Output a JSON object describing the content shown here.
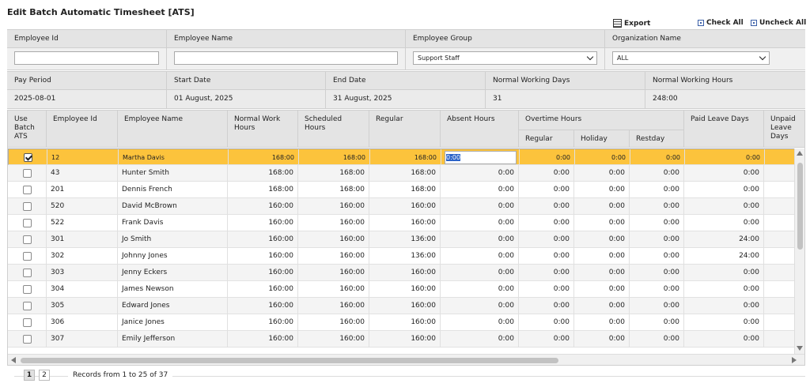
{
  "title": "Edit Batch Automatic Timesheet [ATS]",
  "toolbar": {
    "export": "Export",
    "check_all": "Check All",
    "uncheck_all": "Uncheck All"
  },
  "filters": {
    "labels": [
      "Employee Id",
      "Employee Name",
      "Employee Group",
      "Organization Name"
    ],
    "employee_id": "",
    "employee_name": "",
    "employee_group": "Support Staff",
    "organization": "ALL"
  },
  "info": {
    "labels": [
      "Pay Period",
      "Start Date",
      "End Date",
      "Normal Working Days",
      "Normal Working Hours"
    ],
    "values": [
      "2025-08-01",
      "01 August, 2025",
      "31 August, 2025",
      "31",
      "248:00"
    ]
  },
  "columns": {
    "use_batch": "Use Batch ATS",
    "emp_id": "Employee Id",
    "emp_name": "Employee Name",
    "normal_hours": "Normal Work Hours",
    "scheduled": "Scheduled Hours",
    "regular": "Regular",
    "absent": "Absent Hours",
    "overtime": "Overtime Hours",
    "ot_regular": "Regular",
    "ot_holiday": "Holiday",
    "ot_restday": "Restday",
    "paid_leave": "Paid Leave Days",
    "unpaid_leave": "Unpaid Leave Days"
  },
  "rows": [
    {
      "checked": true,
      "id": "12",
      "name": "Martha Davis",
      "normal": "168:00",
      "scheduled": "168:00",
      "regular": "168:00",
      "absent": "0:00",
      "ot_reg": "0:00",
      "ot_hol": "0:00",
      "ot_rest": "0:00",
      "paid": "0:00"
    },
    {
      "checked": false,
      "id": "43",
      "name": "Hunter Smith",
      "normal": "168:00",
      "scheduled": "168:00",
      "regular": "168:00",
      "absent": "0:00",
      "ot_reg": "0:00",
      "ot_hol": "0:00",
      "ot_rest": "0:00",
      "paid": "0:00"
    },
    {
      "checked": false,
      "id": "201",
      "name": "Dennis French",
      "normal": "168:00",
      "scheduled": "168:00",
      "regular": "168:00",
      "absent": "0:00",
      "ot_reg": "0:00",
      "ot_hol": "0:00",
      "ot_rest": "0:00",
      "paid": "0:00"
    },
    {
      "checked": false,
      "id": "520",
      "name": "David McBrown",
      "normal": "160:00",
      "scheduled": "160:00",
      "regular": "160:00",
      "absent": "0:00",
      "ot_reg": "0:00",
      "ot_hol": "0:00",
      "ot_rest": "0:00",
      "paid": "0:00"
    },
    {
      "checked": false,
      "id": "522",
      "name": "Frank Davis",
      "normal": "160:00",
      "scheduled": "160:00",
      "regular": "160:00",
      "absent": "0:00",
      "ot_reg": "0:00",
      "ot_hol": "0:00",
      "ot_rest": "0:00",
      "paid": "0:00"
    },
    {
      "checked": false,
      "id": "301",
      "name": "Jo Smith",
      "normal": "160:00",
      "scheduled": "160:00",
      "regular": "136:00",
      "absent": "0:00",
      "ot_reg": "0:00",
      "ot_hol": "0:00",
      "ot_rest": "0:00",
      "paid": "24:00"
    },
    {
      "checked": false,
      "id": "302",
      "name": "Johnny Jones",
      "normal": "160:00",
      "scheduled": "160:00",
      "regular": "136:00",
      "absent": "0:00",
      "ot_reg": "0:00",
      "ot_hol": "0:00",
      "ot_rest": "0:00",
      "paid": "24:00"
    },
    {
      "checked": false,
      "id": "303",
      "name": "Jenny Eckers",
      "normal": "160:00",
      "scheduled": "160:00",
      "regular": "160:00",
      "absent": "0:00",
      "ot_reg": "0:00",
      "ot_hol": "0:00",
      "ot_rest": "0:00",
      "paid": "0:00"
    },
    {
      "checked": false,
      "id": "304",
      "name": "James Newson",
      "normal": "160:00",
      "scheduled": "160:00",
      "regular": "160:00",
      "absent": "0:00",
      "ot_reg": "0:00",
      "ot_hol": "0:00",
      "ot_rest": "0:00",
      "paid": "0:00"
    },
    {
      "checked": false,
      "id": "305",
      "name": "Edward Jones",
      "normal": "160:00",
      "scheduled": "160:00",
      "regular": "160:00",
      "absent": "0:00",
      "ot_reg": "0:00",
      "ot_hol": "0:00",
      "ot_rest": "0:00",
      "paid": "0:00"
    },
    {
      "checked": false,
      "id": "306",
      "name": "Janice Jones",
      "normal": "160:00",
      "scheduled": "160:00",
      "regular": "160:00",
      "absent": "0:00",
      "ot_reg": "0:00",
      "ot_hol": "0:00",
      "ot_rest": "0:00",
      "paid": "0:00"
    },
    {
      "checked": false,
      "id": "307",
      "name": "Emily Jefferson",
      "normal": "160:00",
      "scheduled": "160:00",
      "regular": "160:00",
      "absent": "0:00",
      "ot_reg": "0:00",
      "ot_hol": "0:00",
      "ot_rest": "0:00",
      "paid": "0:00"
    }
  ],
  "pager": {
    "pages": [
      "1",
      "2"
    ],
    "current": "1",
    "records": "Records from 1 to 25 of 37"
  },
  "colors": {
    "selected_row": "#fcc33c",
    "header_bg": "#e4e4e4",
    "edit_highlight": "#2b63c8"
  },
  "icons": {
    "export": "export-icon",
    "check_all": "check-all-icon",
    "uncheck_all": "uncheck-all-icon"
  }
}
